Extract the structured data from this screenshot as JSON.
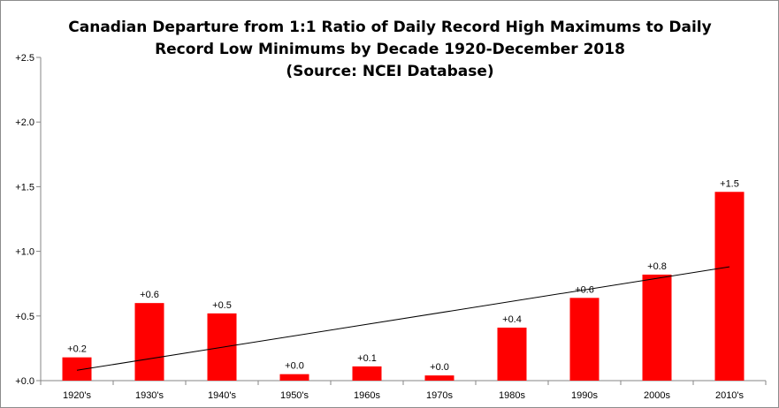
{
  "chart_data": {
    "type": "bar",
    "title_lines": [
      "Canadian Departure  from 1:1 Ratio of Daily Record High Maximums to Daily",
      "Record Low Minimums  by Decade 1920-December 2018",
      "(Source: NCEI Database)"
    ],
    "categories": [
      "1920's",
      "1930's",
      "1940's",
      "1950's",
      "1960s",
      "1970s",
      "1980s",
      "1990s",
      "2000s",
      "2010's"
    ],
    "values": [
      0.18,
      0.6,
      0.52,
      0.05,
      0.11,
      0.04,
      0.41,
      0.64,
      0.82,
      1.46
    ],
    "data_labels": [
      "+0.2",
      "+0.6",
      "+0.5",
      "+0.0",
      "+0.1",
      "+0.0",
      "+0.4",
      "+0.6",
      "+0.8",
      "+1.5"
    ],
    "ylim": [
      0,
      2.5
    ],
    "yticks": [
      0,
      0.5,
      1.0,
      1.5,
      2.0,
      2.5
    ],
    "ytick_labels": [
      "+0.0",
      "+0.5",
      "+1.0",
      "+1.5",
      "+2.0",
      "+2.5"
    ],
    "trendline": {
      "type": "linear",
      "start": 0.08,
      "end": 0.88,
      "color": "#000000"
    },
    "bar_color": "#ff0000",
    "grid": false,
    "legend": "none",
    "xlabel": "",
    "ylabel": ""
  }
}
